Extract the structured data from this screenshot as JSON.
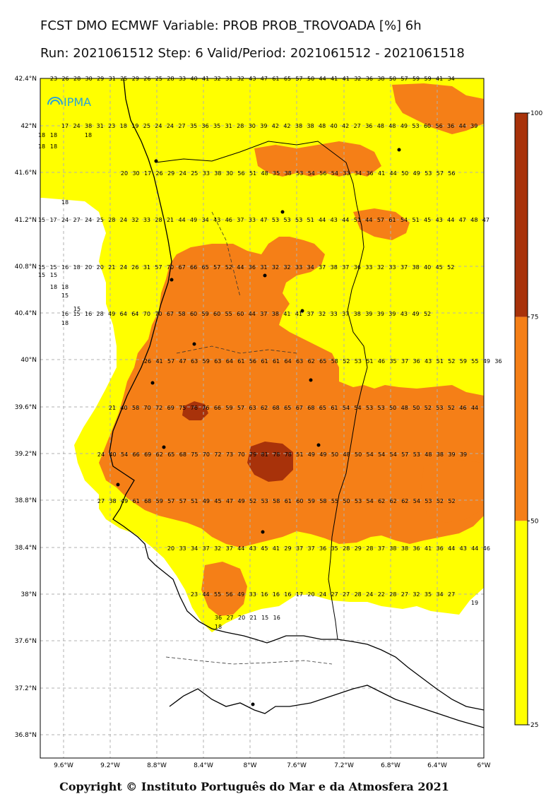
{
  "title_line1": "FCST DMO ECMWF Variable: PROB PROB_TROVOADA [%] 6h",
  "title_line2": "Run: 2021061512 Step: 6 Valid/Period: 2021061512 - 2021061518",
  "logo_text": "IPMA",
  "copyright": "Copyright © Instituto Português do Mar e da Atmosfera 2021",
  "axes": {
    "lat_labels": [
      "42.4°N",
      "42°N",
      "41.6°N",
      "41.2°N",
      "40.8°N",
      "40.4°N",
      "40°N",
      "39.6°N",
      "39.2°N",
      "38.8°N",
      "38.4°N",
      "38°N",
      "37.6°N",
      "37.2°N",
      "36.8°N"
    ],
    "lon_labels": [
      "9.6°W",
      "9.2°W",
      "8.8°W",
      "8.4°W",
      "8°W",
      "7.6°W",
      "7.2°W",
      "6.8°W",
      "6.4°W",
      "6°W"
    ]
  },
  "colorbar": {
    "labels": [
      "100",
      "75",
      "50",
      "25"
    ],
    "bands": [
      {
        "from": 75,
        "to": 100,
        "color": "#a8320a"
      },
      {
        "from": 50,
        "to": 75,
        "color": "#f57f17"
      },
      {
        "from": 25,
        "to": 50,
        "color": "#ffff00"
      }
    ]
  },
  "colors": {
    "land": "#ffffff",
    "grid": "#b0b0b0",
    "coast": "#000000",
    "border": "#000000"
  },
  "value_rows": [
    {
      "lat": "42.4°N",
      "values": [
        23,
        26,
        28,
        30,
        29,
        31,
        25,
        29,
        26,
        25,
        28,
        33,
        40,
        41,
        32,
        31,
        32,
        43,
        47,
        61,
        65,
        57,
        50,
        44,
        41,
        41,
        32,
        36,
        38,
        50,
        57,
        59,
        59,
        41,
        34
      ]
    },
    {
      "lat": "42°N",
      "values": [
        17,
        24,
        38,
        31,
        23,
        18,
        19,
        25,
        24,
        24,
        27,
        35,
        36,
        35,
        31,
        28,
        30,
        39,
        42,
        42,
        38,
        38,
        48,
        40,
        42,
        27,
        36,
        48,
        48,
        49,
        53,
        60,
        56,
        36,
        44,
        39
      ]
    },
    {
      "lat": "41.6°N",
      "values": [
        20,
        30,
        17,
        26,
        29,
        24,
        25,
        33,
        38,
        30,
        56,
        51,
        48,
        35,
        38,
        53,
        54,
        56,
        54,
        33,
        34,
        36,
        41,
        44,
        50,
        49,
        53,
        57,
        56
      ]
    },
    {
      "lat": "41.2°N",
      "values": [
        15,
        17,
        24,
        27,
        24,
        25,
        28,
        24,
        32,
        33,
        28,
        21,
        44,
        49,
        34,
        43,
        46,
        37,
        33,
        47,
        53,
        53,
        53,
        51,
        44,
        43,
        44,
        51,
        44,
        57,
        61,
        54,
        51,
        45,
        43,
        44,
        47,
        48,
        47
      ]
    },
    {
      "lat": "40.8°N",
      "values": [
        15,
        15,
        16,
        18,
        20,
        20,
        21,
        24,
        26,
        31,
        57,
        70,
        67,
        66,
        65,
        57,
        52,
        44,
        36,
        31,
        32,
        32,
        33,
        34,
        37,
        38,
        37,
        36,
        33,
        32,
        33,
        37,
        38,
        40,
        45,
        52
      ]
    },
    {
      "lat": "40.4°N",
      "values": [
        16,
        15,
        16,
        28,
        49,
        64,
        64,
        70,
        70,
        67,
        58,
        60,
        59,
        60,
        55,
        60,
        44,
        37,
        38,
        41,
        41,
        37,
        32,
        33,
        37,
        38,
        39,
        39,
        39,
        43,
        49,
        52
      ]
    },
    {
      "lat": "40°N",
      "values": [
        26,
        41,
        57,
        47,
        63,
        59,
        63,
        64,
        61,
        56,
        61,
        61,
        64,
        63,
        62,
        65,
        58,
        52,
        53,
        51,
        46,
        35,
        37,
        36,
        43,
        51,
        52,
        59,
        55,
        49,
        36
      ]
    },
    {
      "lat": "39.6°N",
      "values": [
        21,
        40,
        58,
        70,
        72,
        69,
        75,
        76,
        76,
        66,
        59,
        57,
        63,
        62,
        68,
        65,
        67,
        68,
        65,
        61,
        54,
        54,
        53,
        53,
        50,
        48,
        50,
        52,
        53,
        52,
        46,
        44
      ]
    },
    {
      "lat": "39.2°N",
      "values": [
        24,
        40,
        54,
        66,
        69,
        62,
        65,
        68,
        75,
        70,
        72,
        73,
        70,
        79,
        81,
        78,
        78,
        51,
        49,
        49,
        50,
        48,
        50,
        54,
        54,
        54,
        57,
        53,
        48,
        38,
        39,
        39
      ]
    },
    {
      "lat": "38.8°N",
      "values": [
        27,
        38,
        49,
        61,
        68,
        59,
        57,
        57,
        51,
        49,
        45,
        47,
        49,
        52,
        53,
        58,
        61,
        60,
        59,
        58,
        55,
        50,
        53,
        54,
        62,
        62,
        62,
        54,
        53,
        52,
        52
      ]
    },
    {
      "lat": "38.4°N",
      "values": [
        20,
        33,
        34,
        37,
        32,
        37,
        44,
        43,
        45,
        41,
        29,
        37,
        37,
        36,
        35,
        28,
        29,
        28,
        37,
        38,
        38,
        36,
        41,
        36,
        44,
        43,
        44,
        46
      ]
    },
    {
      "lat": "38°N",
      "values": [
        23,
        44,
        55,
        56,
        49,
        33,
        16,
        16,
        16,
        17,
        20,
        24,
        27,
        27,
        28,
        24,
        22,
        28,
        27,
        32,
        35,
        34,
        27
      ]
    },
    {
      "lat": "37.8°N",
      "values": [
        36,
        27,
        20,
        21,
        15,
        16
      ]
    }
  ],
  "extra_values": [
    "18",
    "18",
    "15",
    "15",
    "15",
    "15",
    "18",
    "18",
    "18",
    "18",
    "18",
    "18",
    "18",
    "18",
    "19"
  ]
}
